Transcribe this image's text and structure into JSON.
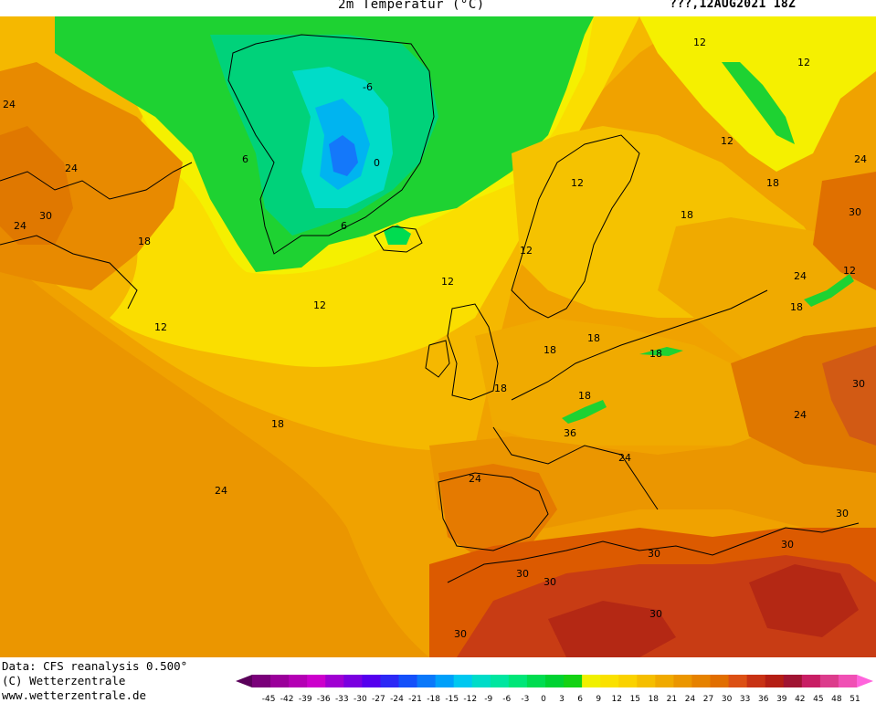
{
  "header": {
    "title": "2m Temperatur (°C)",
    "date": "???,12AUG2021 18Z"
  },
  "credits": {
    "data_source": "Data: CFS reanalysis 0.500°",
    "copyright": "(C) Wetterzentrale",
    "website": "www.wetterzentrale.de"
  },
  "legend": {
    "unit": "°C",
    "ticks": [
      "-45",
      "-42",
      "-39",
      "-36",
      "-33",
      "-30",
      "-27",
      "-24",
      "-21",
      "-18",
      "-15",
      "-12",
      "-9",
      "-6",
      "-3",
      "0",
      "3",
      "6",
      "9",
      "12",
      "15",
      "18",
      "21",
      "24",
      "27",
      "30",
      "33",
      "36",
      "39",
      "42",
      "45",
      "48",
      "51"
    ],
    "colors": [
      "#5a005a",
      "#7a007a",
      "#9a009a",
      "#b400b4",
      "#cc00cc",
      "#a000d2",
      "#7a00e0",
      "#5500ee",
      "#2c28f5",
      "#1450fa",
      "#0a78fa",
      "#00a0fa",
      "#00c8f0",
      "#00dcc8",
      "#00e6a0",
      "#00e678",
      "#00dc50",
      "#00d232",
      "#14d214",
      "#f0f000",
      "#fae100",
      "#fad200",
      "#f5be00",
      "#f0aa00",
      "#eb9600",
      "#e68200",
      "#e16e00",
      "#dc5014",
      "#c83214",
      "#b41e14",
      "#a01432",
      "#c81e64",
      "#dc3c8c",
      "#f050b4",
      "#ff64dc"
    ]
  },
  "map": {
    "contour_labels": [
      {
        "text": "-6",
        "region": "greenland"
      },
      {
        "text": "0",
        "region": "greenland"
      },
      {
        "text": "6",
        "region": "greenland"
      },
      {
        "text": "6",
        "region": "greenland-south"
      },
      {
        "text": "12",
        "region": "svalbard-sea"
      },
      {
        "text": "12",
        "region": "russia-north"
      },
      {
        "text": "12",
        "region": "barents"
      },
      {
        "text": "12",
        "region": "scandinavia"
      },
      {
        "text": "12",
        "region": "norway"
      },
      {
        "text": "12",
        "region": "north-atlantic"
      },
      {
        "text": "12",
        "region": "north-sea"
      },
      {
        "text": "12",
        "region": "caspian"
      },
      {
        "text": "12",
        "region": "atlantic-west"
      },
      {
        "text": "18",
        "region": "canada"
      },
      {
        "text": "18",
        "region": "russia"
      },
      {
        "text": "18",
        "region": "russia-east"
      },
      {
        "text": "18",
        "region": "poland"
      },
      {
        "text": "18",
        "region": "benelux"
      },
      {
        "text": "18",
        "region": "alps"
      },
      {
        "text": "18",
        "region": "carpathians"
      },
      {
        "text": "18",
        "region": "bay-of-biscay"
      },
      {
        "text": "18",
        "region": "atlantic-mid"
      },
      {
        "text": "18",
        "region": "ukraine"
      },
      {
        "text": "24",
        "region": "canada-west"
      },
      {
        "text": "24",
        "region": "labrador"
      },
      {
        "text": "24",
        "region": "canada-south"
      },
      {
        "text": "24",
        "region": "atlantic-south"
      },
      {
        "text": "24",
        "region": "iberia"
      },
      {
        "text": "24",
        "region": "italy"
      },
      {
        "text": "24",
        "region": "russia-south"
      },
      {
        "text": "24",
        "region": "kazakhstan"
      },
      {
        "text": "24",
        "region": "black-sea"
      },
      {
        "text": "30",
        "region": "quebec"
      },
      {
        "text": "30",
        "region": "caspian-east"
      },
      {
        "text": "30",
        "region": "turkey"
      },
      {
        "text": "30",
        "region": "middle-east"
      },
      {
        "text": "30",
        "region": "middle-east-south"
      },
      {
        "text": "30",
        "region": "sahara-east"
      },
      {
        "text": "30",
        "region": "algeria"
      },
      {
        "text": "30",
        "region": "morocco"
      },
      {
        "text": "30",
        "region": "tunisia"
      },
      {
        "text": "30",
        "region": "libya"
      },
      {
        "text": "36",
        "region": "sahara"
      }
    ]
  }
}
